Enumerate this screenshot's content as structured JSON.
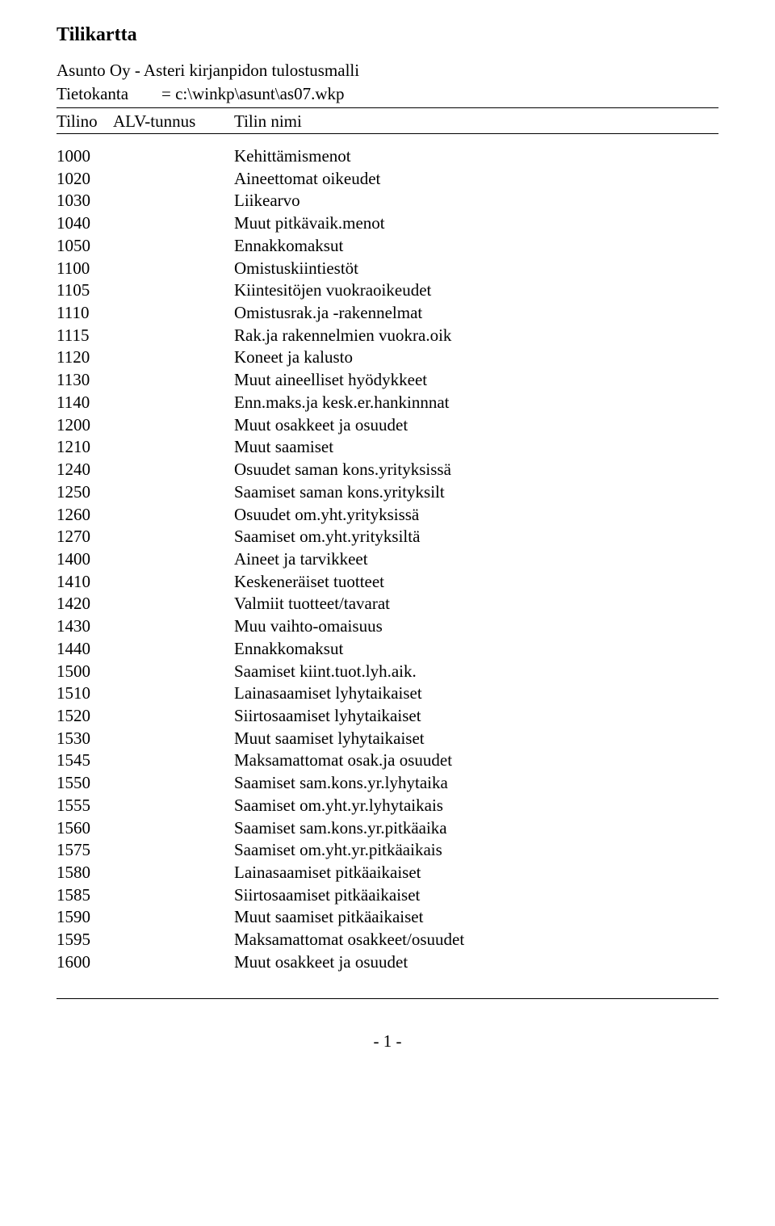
{
  "title": "Tilikartta",
  "subtitle": "Asunto Oy - Asteri kirjanpidon tulostusmalli",
  "meta": {
    "database_label": "Tietokanta",
    "database_value": "= c:\\winkp\\asunt\\as07.wkp"
  },
  "columns": {
    "tilino": "Tilino",
    "alv": "ALV-tunnus",
    "nimi": "Tilin nimi"
  },
  "rows": [
    {
      "tilino": "1000",
      "alv": "",
      "nimi": "Kehittämismenot"
    },
    {
      "tilino": "1020",
      "alv": "",
      "nimi": "Aineettomat oikeudet"
    },
    {
      "tilino": "1030",
      "alv": "",
      "nimi": "Liikearvo"
    },
    {
      "tilino": "1040",
      "alv": "",
      "nimi": "Muut pitkävaik.menot"
    },
    {
      "tilino": "1050",
      "alv": "",
      "nimi": "Ennakkomaksut"
    },
    {
      "tilino": "1100",
      "alv": "",
      "nimi": "Omistuskiintiestöt"
    },
    {
      "tilino": "1105",
      "alv": "",
      "nimi": "Kiintesitöjen vuokraoikeudet"
    },
    {
      "tilino": "1110",
      "alv": "",
      "nimi": "Omistusrak.ja -rakennelmat"
    },
    {
      "tilino": "1115",
      "alv": "",
      "nimi": "Rak.ja rakennelmien vuokra.oik"
    },
    {
      "tilino": "1120",
      "alv": "",
      "nimi": "Koneet ja kalusto"
    },
    {
      "tilino": "1130",
      "alv": "",
      "nimi": "Muut aineelliset hyödykkeet"
    },
    {
      "tilino": "1140",
      "alv": "",
      "nimi": "Enn.maks.ja kesk.er.hankinnnat"
    },
    {
      "tilino": "1200",
      "alv": "",
      "nimi": "Muut osakkeet ja osuudet"
    },
    {
      "tilino": "1210",
      "alv": "",
      "nimi": "Muut saamiset"
    },
    {
      "tilino": "1240",
      "alv": "",
      "nimi": "Osuudet saman kons.yrityksissä"
    },
    {
      "tilino": "1250",
      "alv": "",
      "nimi": "Saamiset saman kons.yrityksilt"
    },
    {
      "tilino": "1260",
      "alv": "",
      "nimi": "Osuudet om.yht.yrityksissä"
    },
    {
      "tilino": "1270",
      "alv": "",
      "nimi": "Saamiset om.yht.yrityksiltä"
    },
    {
      "tilino": "1400",
      "alv": "",
      "nimi": "Aineet ja tarvikkeet"
    },
    {
      "tilino": "1410",
      "alv": "",
      "nimi": "Keskeneräiset tuotteet"
    },
    {
      "tilino": "1420",
      "alv": "",
      "nimi": "Valmiit tuotteet/tavarat"
    },
    {
      "tilino": "1430",
      "alv": "",
      "nimi": "Muu vaihto-omaisuus"
    },
    {
      "tilino": "1440",
      "alv": "",
      "nimi": "Ennakkomaksut"
    },
    {
      "tilino": "1500",
      "alv": "",
      "nimi": "Saamiset kiint.tuot.lyh.aik."
    },
    {
      "tilino": "1510",
      "alv": "",
      "nimi": "Lainasaamiset lyhytaikaiset"
    },
    {
      "tilino": "1520",
      "alv": "",
      "nimi": "Siirtosaamiset lyhytaikaiset"
    },
    {
      "tilino": "1530",
      "alv": "",
      "nimi": "Muut saamiset lyhytaikaiset"
    },
    {
      "tilino": "1545",
      "alv": "",
      "nimi": "Maksamattomat osak.ja osuudet"
    },
    {
      "tilino": "1550",
      "alv": "",
      "nimi": "Saamiset sam.kons.yr.lyhytaika"
    },
    {
      "tilino": "1555",
      "alv": "",
      "nimi": "Saamiset om.yht.yr.lyhytaikais"
    },
    {
      "tilino": "1560",
      "alv": "",
      "nimi": "Saamiset sam.kons.yr.pitkäaika"
    },
    {
      "tilino": "1575",
      "alv": "",
      "nimi": "Saamiset om.yht.yr.pitkäaikais"
    },
    {
      "tilino": "1580",
      "alv": "",
      "nimi": "Lainasaamiset pitkäaikaiset"
    },
    {
      "tilino": "1585",
      "alv": "",
      "nimi": "Siirtosaamiset pitkäaikaiset"
    },
    {
      "tilino": "1590",
      "alv": "",
      "nimi": "Muut saamiset pitkäaikaiset"
    },
    {
      "tilino": "1595",
      "alv": "",
      "nimi": "Maksamattomat osakkeet/osuudet"
    },
    {
      "tilino": "1600",
      "alv": "",
      "nimi": "Muut osakkeet ja osuudet"
    }
  ],
  "footer": "- 1 -"
}
